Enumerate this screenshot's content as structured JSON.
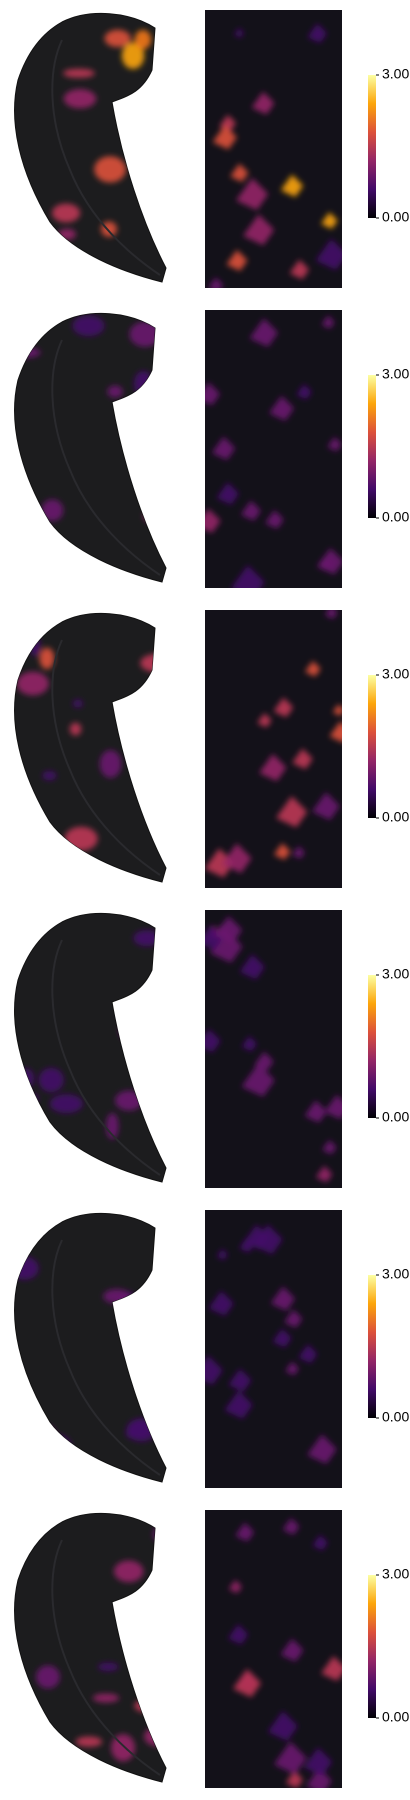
{
  "panels": [
    {
      "colorbar": {
        "lim": [
          0,
          3
        ],
        "ticks": [
          {
            "value": 0,
            "label": "0.00"
          },
          {
            "value": 3,
            "label": "3.00"
          }
        ]
      }
    },
    {
      "colorbar": {
        "lim": [
          0,
          3
        ],
        "ticks": [
          {
            "value": 0,
            "label": "0.00"
          },
          {
            "value": 3,
            "label": "3.00"
          }
        ]
      }
    },
    {
      "colorbar": {
        "lim": [
          0,
          3
        ],
        "ticks": [
          {
            "value": 0,
            "label": "0.00"
          },
          {
            "value": 3,
            "label": "3.00"
          }
        ]
      }
    },
    {
      "colorbar": {
        "lim": [
          0,
          3
        ],
        "ticks": [
          {
            "value": 0,
            "label": "0.00"
          },
          {
            "value": 3,
            "label": "3.00"
          }
        ]
      }
    },
    {
      "colorbar": {
        "lim": [
          0,
          3
        ],
        "ticks": [
          {
            "value": 0,
            "label": "0.00"
          },
          {
            "value": 3,
            "label": "3.00"
          }
        ]
      }
    },
    {
      "colorbar": {
        "lim": [
          0,
          3
        ],
        "ticks": [
          {
            "value": 0,
            "label": "0.00"
          },
          {
            "value": 3,
            "label": "3.00"
          }
        ]
      }
    }
  ]
}
